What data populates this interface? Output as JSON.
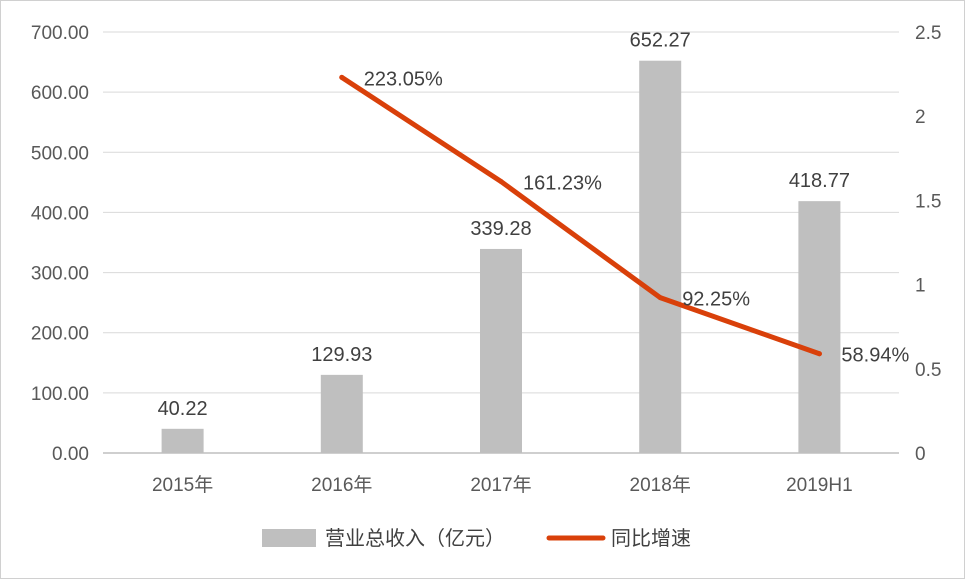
{
  "chart_data": {
    "type": "bar",
    "categories": [
      "2015年",
      "2016年",
      "2017年",
      "2018年",
      "2019H1"
    ],
    "series": [
      {
        "name": "营业总收入（亿元）",
        "type": "bar",
        "axis": "left",
        "values": [
          40.22,
          129.93,
          339.28,
          652.27,
          418.77
        ],
        "labels": [
          "40.22",
          "129.93",
          "339.28",
          "652.27",
          "418.77"
        ],
        "color": "#bfbfbf"
      },
      {
        "name": "同比增速",
        "type": "line",
        "axis": "right",
        "values": [
          null,
          2.2305,
          1.6123,
          0.9225,
          0.5894
        ],
        "labels": [
          "",
          "223.05%",
          "161.23%",
          "92.25%",
          "58.94%"
        ],
        "color": "#d9400a"
      }
    ],
    "y_left": {
      "min": 0,
      "max": 700,
      "ticks": [
        0,
        100,
        200,
        300,
        400,
        500,
        600,
        700
      ],
      "tick_labels": [
        "0.00",
        "100.00",
        "200.00",
        "300.00",
        "400.00",
        "500.00",
        "600.00",
        "700.00"
      ]
    },
    "y_right": {
      "min": 0,
      "max": 2.5,
      "ticks": [
        0,
        0.5,
        1,
        1.5,
        2,
        2.5
      ],
      "tick_labels": [
        "0",
        "0.5",
        "1",
        "1.5",
        "2",
        "2.5"
      ]
    },
    "grid": true,
    "legend": "bottom"
  }
}
